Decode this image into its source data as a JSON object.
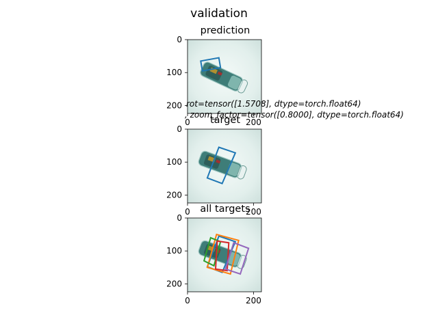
{
  "figure": {
    "title": "validation",
    "annotation_line1": "rot=tensor([1.5708], dtype=torch.float64)",
    "annotation_line2": ", zoom_factor=tensor([0.8000], dtype=torch.float64)"
  },
  "chart_data": [
    {
      "type": "image-overlay",
      "title": "prediction",
      "xlim": [
        0,
        224
      ],
      "ylim": [
        224,
        0
      ],
      "xticks": [
        0,
        200
      ],
      "yticks": [
        0,
        100,
        200
      ],
      "boxes": [
        {
          "color": "#1f77b4",
          "corners": [
            [
              40,
              65
            ],
            [
              95,
              55
            ],
            [
              100,
              85
            ],
            [
              45,
              95
            ]
          ]
        }
      ]
    },
    {
      "type": "image-overlay",
      "title": "target",
      "xlim": [
        0,
        224
      ],
      "ylim": [
        224,
        0
      ],
      "xticks": [
        0,
        200
      ],
      "yticks": [
        0,
        100,
        200
      ],
      "boxes": [
        {
          "color": "#1f77b4",
          "corners": [
            [
              95,
              55
            ],
            [
              145,
              72
            ],
            [
              105,
              165
            ],
            [
              60,
              148
            ]
          ]
        }
      ]
    },
    {
      "type": "image-overlay",
      "title": "all targets",
      "xlim": [
        0,
        224
      ],
      "ylim": [
        224,
        0
      ],
      "xticks": [
        0,
        200
      ],
      "yticks": [
        0,
        100,
        200
      ],
      "boxes": [
        {
          "color": "#1f77b4",
          "corners": [
            [
              95,
              55
            ],
            [
              145,
              72
            ],
            [
              105,
              165
            ],
            [
              60,
              148
            ]
          ]
        },
        {
          "color": "#ff7f0e",
          "corners": [
            [
              88,
              50
            ],
            [
              155,
              68
            ],
            [
              130,
              170
            ],
            [
              60,
              150
            ]
          ]
        },
        {
          "color": "#2ca02c",
          "corners": [
            [
              70,
              60
            ],
            [
              100,
              72
            ],
            [
              80,
              145
            ],
            [
              50,
              130
            ]
          ]
        },
        {
          "color": "#d62728",
          "corners": [
            [
              90,
              70
            ],
            [
              125,
              75
            ],
            [
              120,
              160
            ],
            [
              85,
              155
            ]
          ]
        },
        {
          "color": "#9467bd",
          "corners": [
            [
              140,
              75
            ],
            [
              185,
              92
            ],
            [
              160,
              170
            ],
            [
              115,
              155
            ]
          ]
        }
      ]
    }
  ]
}
